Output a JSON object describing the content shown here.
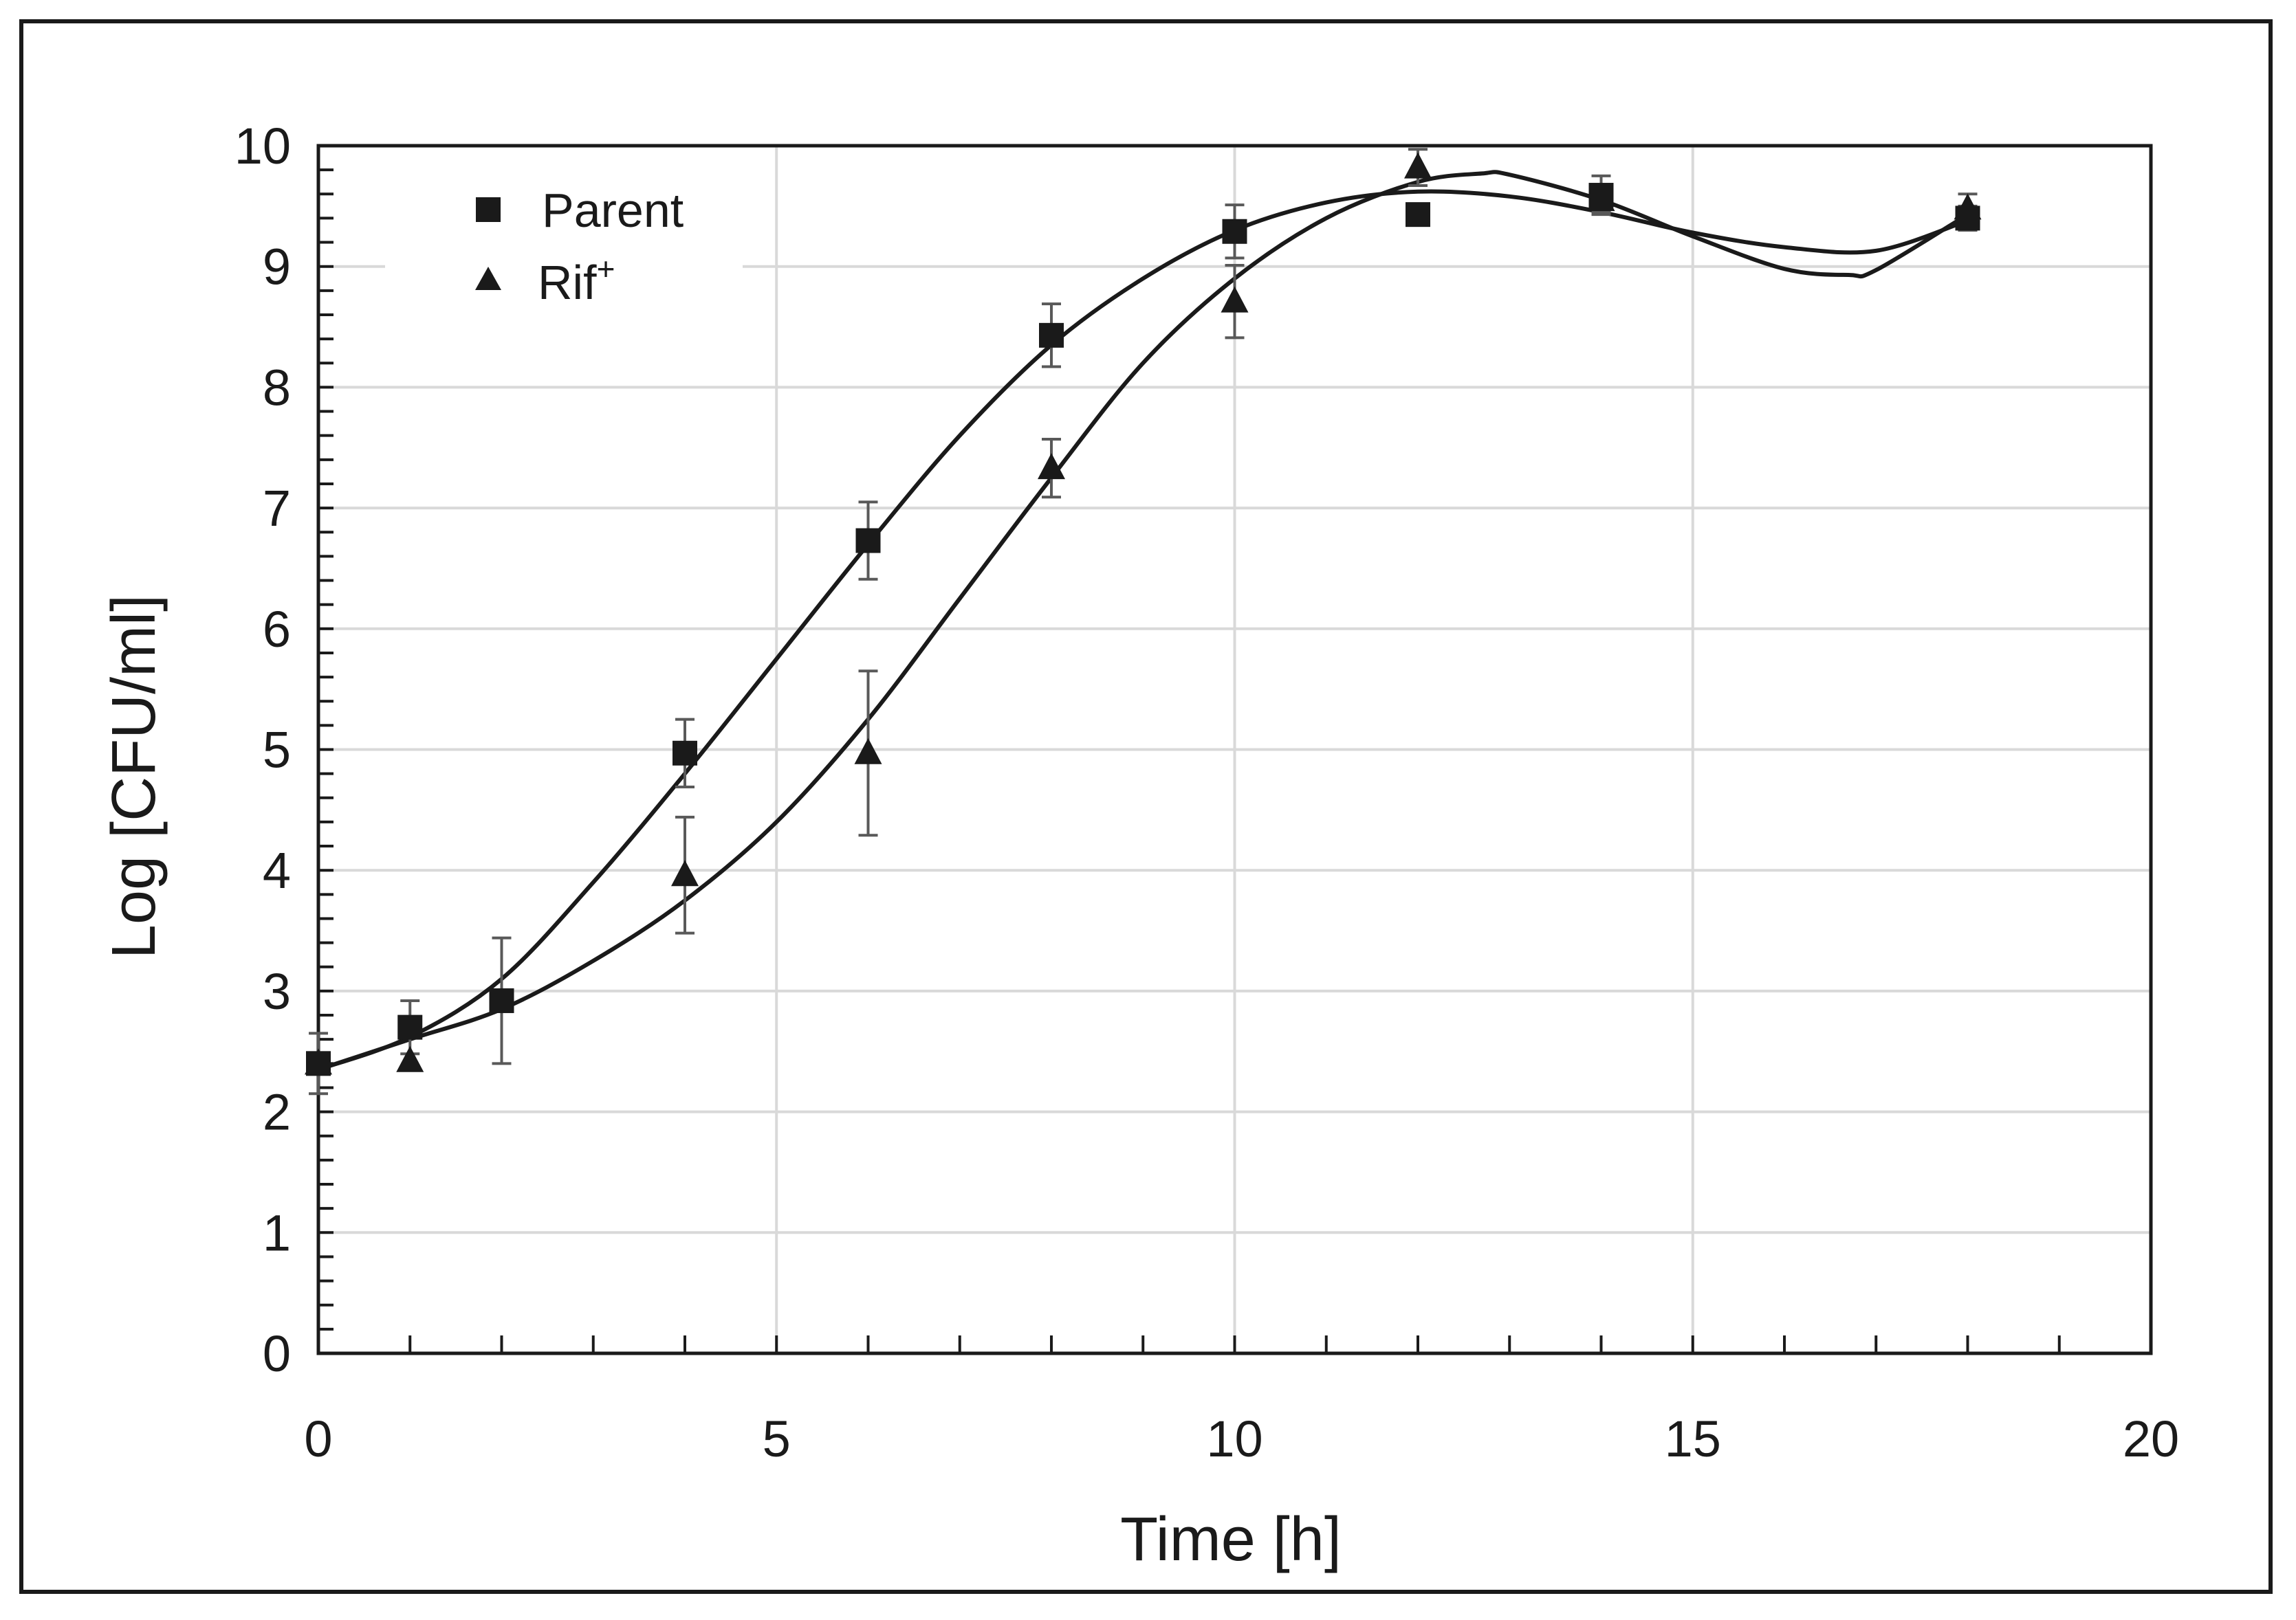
{
  "chart_data": {
    "type": "scatter",
    "title": "",
    "xlabel": "Time [h]",
    "ylabel": "Log [CFU/ml]",
    "xlim": [
      0,
      20
    ],
    "ylim": [
      0,
      10
    ],
    "x_ticks": [
      0,
      5,
      10,
      15,
      20
    ],
    "y_ticks": [
      0,
      1,
      2,
      3,
      4,
      5,
      6,
      7,
      8,
      9,
      10
    ],
    "x_tick_labels": [
      "0",
      "5",
      "10",
      "15",
      "20"
    ],
    "y_tick_labels": [
      "0",
      "1",
      "2",
      "3",
      "4",
      "5",
      "6",
      "7",
      "8",
      "9",
      "10"
    ],
    "grid": true,
    "legend_position": "top-left",
    "series": [
      {
        "name": "Parent",
        "marker": "square",
        "x": [
          0,
          1,
          2,
          4,
          6,
          8,
          10,
          12,
          14,
          18
        ],
        "y": [
          2.4,
          2.7,
          2.92,
          4.97,
          6.73,
          8.43,
          9.29,
          9.43,
          9.59,
          9.4
        ],
        "err": [
          0.0,
          0.22,
          0.52,
          0.28,
          0.32,
          0.26,
          0.22,
          0.0,
          0.16,
          0.1
        ],
        "fit_curve": [
          [
            0,
            2.35
          ],
          [
            1,
            2.62
          ],
          [
            2,
            3.1
          ],
          [
            3,
            3.9
          ],
          [
            4,
            4.8
          ],
          [
            5,
            5.75
          ],
          [
            6,
            6.7
          ],
          [
            7,
            7.6
          ],
          [
            8,
            8.35
          ],
          [
            9,
            8.9
          ],
          [
            10,
            9.3
          ],
          [
            11,
            9.53
          ],
          [
            12,
            9.62
          ],
          [
            13,
            9.58
          ],
          [
            14,
            9.45
          ],
          [
            15,
            9.28
          ],
          [
            16,
            9.16
          ],
          [
            17,
            9.13
          ],
          [
            18,
            9.38
          ]
        ]
      },
      {
        "name": "Rif",
        "name_superscript": "+",
        "marker": "triangle",
        "x": [
          0,
          1,
          4,
          6,
          8,
          10,
          12,
          14,
          18
        ],
        "y": [
          2.4,
          2.42,
          3.96,
          4.97,
          7.33,
          8.71,
          9.82,
          9.55,
          9.48
        ],
        "err": [
          0.25,
          0.0,
          0.48,
          0.68,
          0.24,
          0.3,
          0.15,
          0.1,
          0.12
        ],
        "fit_curve": [
          [
            0,
            2.35
          ],
          [
            1,
            2.6
          ],
          [
            2,
            2.85
          ],
          [
            3,
            3.25
          ],
          [
            4,
            3.75
          ],
          [
            5,
            4.4
          ],
          [
            6,
            5.25
          ],
          [
            7,
            6.25
          ],
          [
            8,
            7.25
          ],
          [
            9,
            8.2
          ],
          [
            10,
            8.9
          ],
          [
            11,
            9.4
          ],
          [
            12,
            9.7
          ],
          [
            12.7,
            9.77
          ],
          [
            13,
            9.76
          ],
          [
            14,
            9.55
          ],
          [
            15,
            9.25
          ],
          [
            16,
            8.98
          ],
          [
            16.7,
            8.93
          ],
          [
            17,
            8.97
          ],
          [
            18,
            9.43
          ]
        ]
      }
    ],
    "colors": {
      "marker": "#1a1a1a",
      "curve": "#1a1a1a",
      "grid": "#d9d9d9",
      "error_bar": "#595959"
    }
  }
}
